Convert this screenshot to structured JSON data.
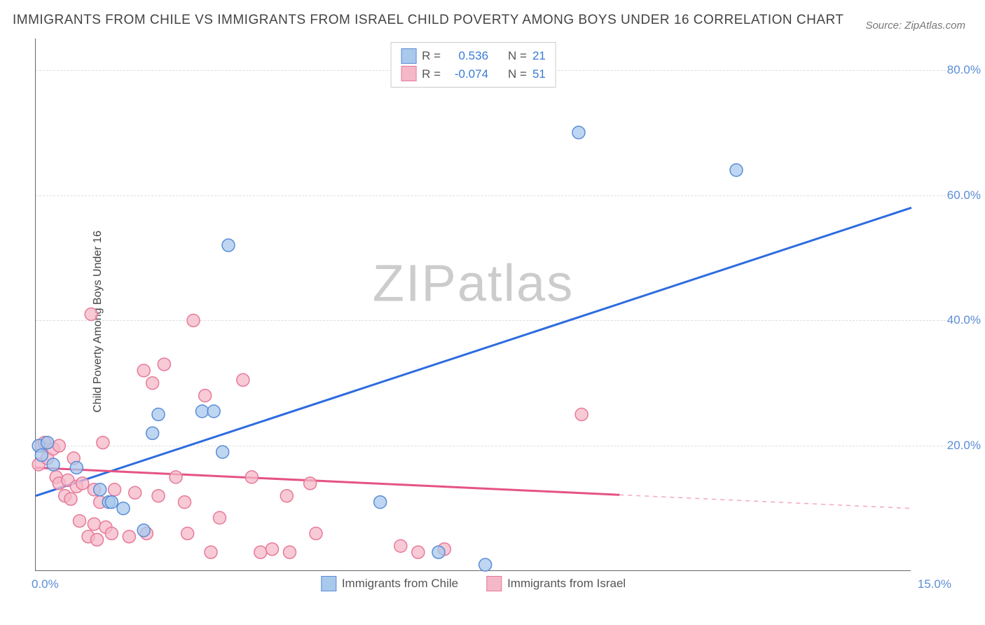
{
  "title": "IMMIGRANTS FROM CHILE VS IMMIGRANTS FROM ISRAEL CHILD POVERTY AMONG BOYS UNDER 16 CORRELATION CHART",
  "source": "Source: ZipAtlas.com",
  "ylabel": "Child Poverty Among Boys Under 16",
  "watermark_zip": "ZIP",
  "watermark_atlas": "atlas",
  "chart": {
    "type": "scatter",
    "xlim": [
      0.0,
      15.0
    ],
    "ylim": [
      0.0,
      85.0
    ],
    "yticks": [
      20.0,
      40.0,
      60.0,
      80.0
    ],
    "ytick_labels": [
      "20.0%",
      "40.0%",
      "60.0%",
      "80.0%"
    ],
    "xtick_left": "0.0%",
    "xtick_right": "15.0%",
    "background_color": "#ffffff",
    "grid_color": "#dddddd",
    "axis_color": "#666666",
    "watermark_color": "#cccccc",
    "series": [
      {
        "name": "Immigrants from Chile",
        "fill": "#a8c8ec",
        "stroke": "#5b8dd6",
        "marker_radius": 9,
        "opacity": 0.75,
        "R": "0.536",
        "N": "21",
        "trend": {
          "color": "#2d6cdf",
          "width": 3,
          "x1": 0.0,
          "y1": 12.0,
          "x2": 15.0,
          "y2": 58.0,
          "dash_after_x": null
        },
        "points": [
          [
            0.05,
            20.0
          ],
          [
            0.1,
            18.5
          ],
          [
            0.2,
            20.5
          ],
          [
            0.3,
            17.0
          ],
          [
            0.7,
            16.5
          ],
          [
            1.1,
            13.0
          ],
          [
            1.25,
            11.0
          ],
          [
            1.3,
            11.0
          ],
          [
            1.5,
            10.0
          ],
          [
            1.85,
            6.5
          ],
          [
            2.0,
            22.0
          ],
          [
            2.1,
            25.0
          ],
          [
            2.85,
            25.5
          ],
          [
            3.05,
            25.5
          ],
          [
            3.2,
            19.0
          ],
          [
            3.3,
            52.0
          ],
          [
            5.9,
            11.0
          ],
          [
            6.9,
            3.0
          ],
          [
            7.7,
            1.0
          ],
          [
            9.3,
            70.0
          ],
          [
            12.0,
            64.0
          ]
        ]
      },
      {
        "name": "Immigrants from Israel",
        "fill": "#f4b8c8",
        "stroke": "#e77a9a",
        "marker_radius": 9,
        "opacity": 0.75,
        "R": "-0.074",
        "N": "51",
        "trend": {
          "color": "#e55384",
          "width": 3,
          "x1": 0.0,
          "y1": 16.5,
          "x2": 15.0,
          "y2": 10.0,
          "dash_after_x": 10.0
        },
        "points": [
          [
            0.05,
            17.0
          ],
          [
            0.1,
            20.0
          ],
          [
            0.15,
            20.5
          ],
          [
            0.2,
            18.0
          ],
          [
            0.3,
            19.5
          ],
          [
            0.35,
            15.0
          ],
          [
            0.4,
            14.0
          ],
          [
            0.4,
            20.0
          ],
          [
            0.5,
            12.0
          ],
          [
            0.55,
            14.5
          ],
          [
            0.6,
            11.5
          ],
          [
            0.65,
            18.0
          ],
          [
            0.7,
            13.5
          ],
          [
            0.75,
            8.0
          ],
          [
            0.8,
            14.0
          ],
          [
            0.9,
            5.5
          ],
          [
            0.95,
            41.0
          ],
          [
            1.0,
            7.5
          ],
          [
            1.0,
            13.0
          ],
          [
            1.1,
            11.0
          ],
          [
            1.15,
            20.5
          ],
          [
            1.2,
            7.0
          ],
          [
            1.3,
            6.0
          ],
          [
            1.35,
            13.0
          ],
          [
            1.6,
            5.5
          ],
          [
            1.7,
            12.5
          ],
          [
            1.85,
            32.0
          ],
          [
            1.9,
            6.0
          ],
          [
            2.0,
            30.0
          ],
          [
            2.1,
            12.0
          ],
          [
            2.2,
            33.0
          ],
          [
            2.4,
            15.0
          ],
          [
            2.55,
            11.0
          ],
          [
            2.6,
            6.0
          ],
          [
            2.7,
            40.0
          ],
          [
            2.9,
            28.0
          ],
          [
            3.0,
            3.0
          ],
          [
            3.15,
            8.5
          ],
          [
            3.55,
            30.5
          ],
          [
            3.7,
            15.0
          ],
          [
            3.85,
            3.0
          ],
          [
            4.05,
            3.5
          ],
          [
            4.3,
            12.0
          ],
          [
            4.35,
            3.0
          ],
          [
            4.7,
            14.0
          ],
          [
            4.8,
            6.0
          ],
          [
            6.25,
            4.0
          ],
          [
            6.55,
            3.0
          ],
          [
            7.0,
            3.5
          ],
          [
            9.35,
            25.0
          ],
          [
            1.05,
            5.0
          ]
        ]
      }
    ]
  },
  "top_legend": {
    "rows": [
      {
        "color_idx": 0,
        "lbl1": "R =",
        "val1": "0.536",
        "lbl2": "N =",
        "val2": "21"
      },
      {
        "color_idx": 1,
        "lbl1": "R =",
        "val1": "-0.074",
        "lbl2": "N =",
        "val2": "51"
      }
    ]
  },
  "bottom_legend": {
    "items": [
      {
        "color_idx": 0,
        "label": "Immigrants from Chile"
      },
      {
        "color_idx": 1,
        "label": "Immigrants from Israel"
      }
    ]
  }
}
